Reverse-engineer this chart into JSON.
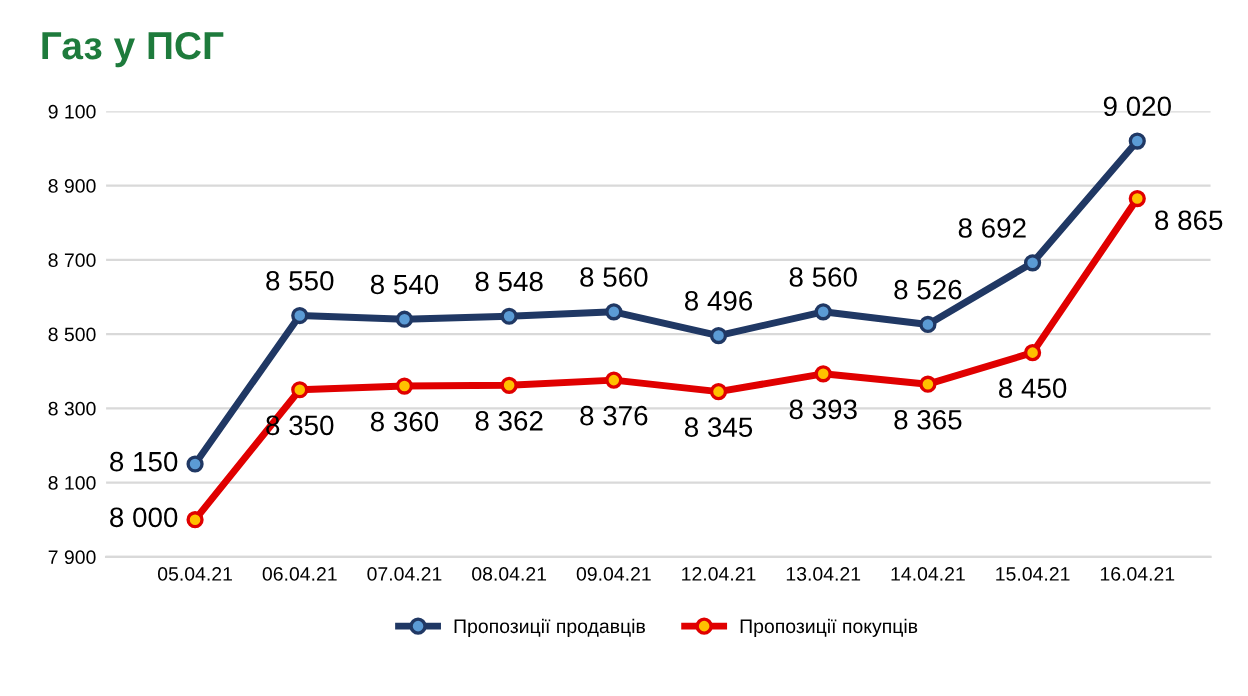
{
  "chart_data": {
    "type": "line",
    "title": "Газ у ПСГ",
    "categories": [
      "05.04.21",
      "06.04.21",
      "07.04.21",
      "08.04.21",
      "09.04.21",
      "12.04.21",
      "13.04.21",
      "14.04.21",
      "15.04.21",
      "16.04.21"
    ],
    "series": [
      {
        "name": "Пропозиції продавців",
        "color": "#203864",
        "values": [
          8150,
          8550,
          8540,
          8548,
          8560,
          8496,
          8560,
          8526,
          8692,
          9020
        ],
        "value_labels": [
          "8 150",
          "8 550",
          "8 540",
          "8 548",
          "8 560",
          "8 496",
          "8 560",
          "8 526",
          "8 692",
          "9 020"
        ]
      },
      {
        "name": "Пропозиції покупців",
        "color": "#e00000",
        "values": [
          8000,
          8350,
          8360,
          8362,
          8376,
          8345,
          8393,
          8365,
          8450,
          8865
        ],
        "value_labels": [
          "8 000",
          "8 350",
          "8 360",
          "8 362",
          "8 376",
          "8 345",
          "8 393",
          "8 365",
          "8 450",
          "8 865"
        ]
      }
    ],
    "ylim": [
      7900,
      9100
    ],
    "yticks": [
      {
        "value": 7900,
        "label": "7 900"
      },
      {
        "value": 8100,
        "label": "8 100"
      },
      {
        "value": 8300,
        "label": "8 300"
      },
      {
        "value": 8500,
        "label": "8 500"
      },
      {
        "value": 8700,
        "label": "8 700"
      },
      {
        "value": 8900,
        "label": "8 900"
      },
      {
        "value": 9100,
        "label": "9 100"
      }
    ],
    "grid": "y",
    "legend": "bottom",
    "marker": "circle",
    "line_style": "solid"
  }
}
